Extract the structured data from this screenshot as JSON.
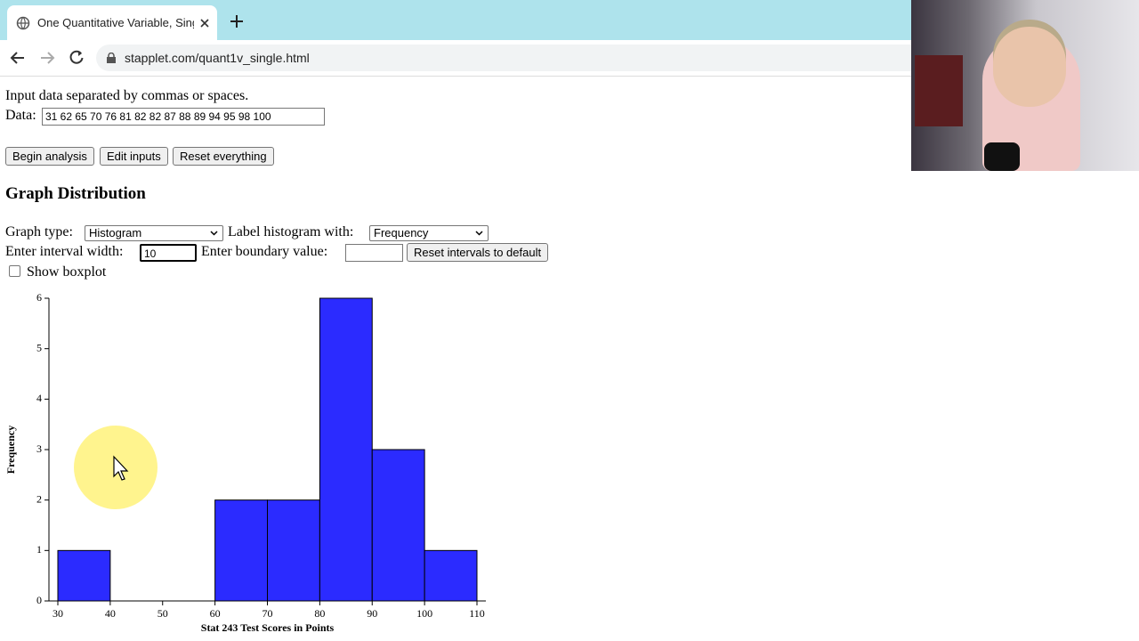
{
  "browser": {
    "tab_title": "One Quantitative Variable, Single",
    "url": "stapplet.com/quant1v_single.html"
  },
  "form": {
    "instruction": "Input data separated by commas or spaces.",
    "data_label": "Data:",
    "data_value": "31 62 65 70 76 81 82 82 87 88 89 94 95 98 100",
    "buttons": [
      "Begin analysis",
      "Edit inputs",
      "Reset everything"
    ],
    "section_title": "Graph Distribution",
    "graph_type_label": "Graph type:",
    "graph_type_value": "Histogram",
    "label_with_label": "Label histogram with:",
    "label_with_value": "Frequency",
    "interval_width_label": "Enter interval width:",
    "interval_width_value": "10",
    "boundary_label": "Enter boundary value:",
    "reset_intervals_button": "Reset intervals to default",
    "show_boxplot_label": "Show boxplot"
  },
  "chart_data": {
    "type": "histogram",
    "bins": [
      30,
      40,
      50,
      60,
      70,
      80,
      90,
      100,
      110
    ],
    "values": [
      1,
      0,
      0,
      2,
      2,
      6,
      3,
      1
    ],
    "color": "#2b2bff",
    "xlim": [
      30,
      110
    ],
    "ylim": [
      0,
      6
    ],
    "xticks": [
      30,
      40,
      50,
      60,
      70,
      80,
      90,
      100,
      110
    ],
    "yticks": [
      0,
      1,
      2,
      3,
      4,
      5,
      6
    ],
    "x_label": "Stat 243 Test Scores in Points",
    "y_label": "Frequency"
  }
}
